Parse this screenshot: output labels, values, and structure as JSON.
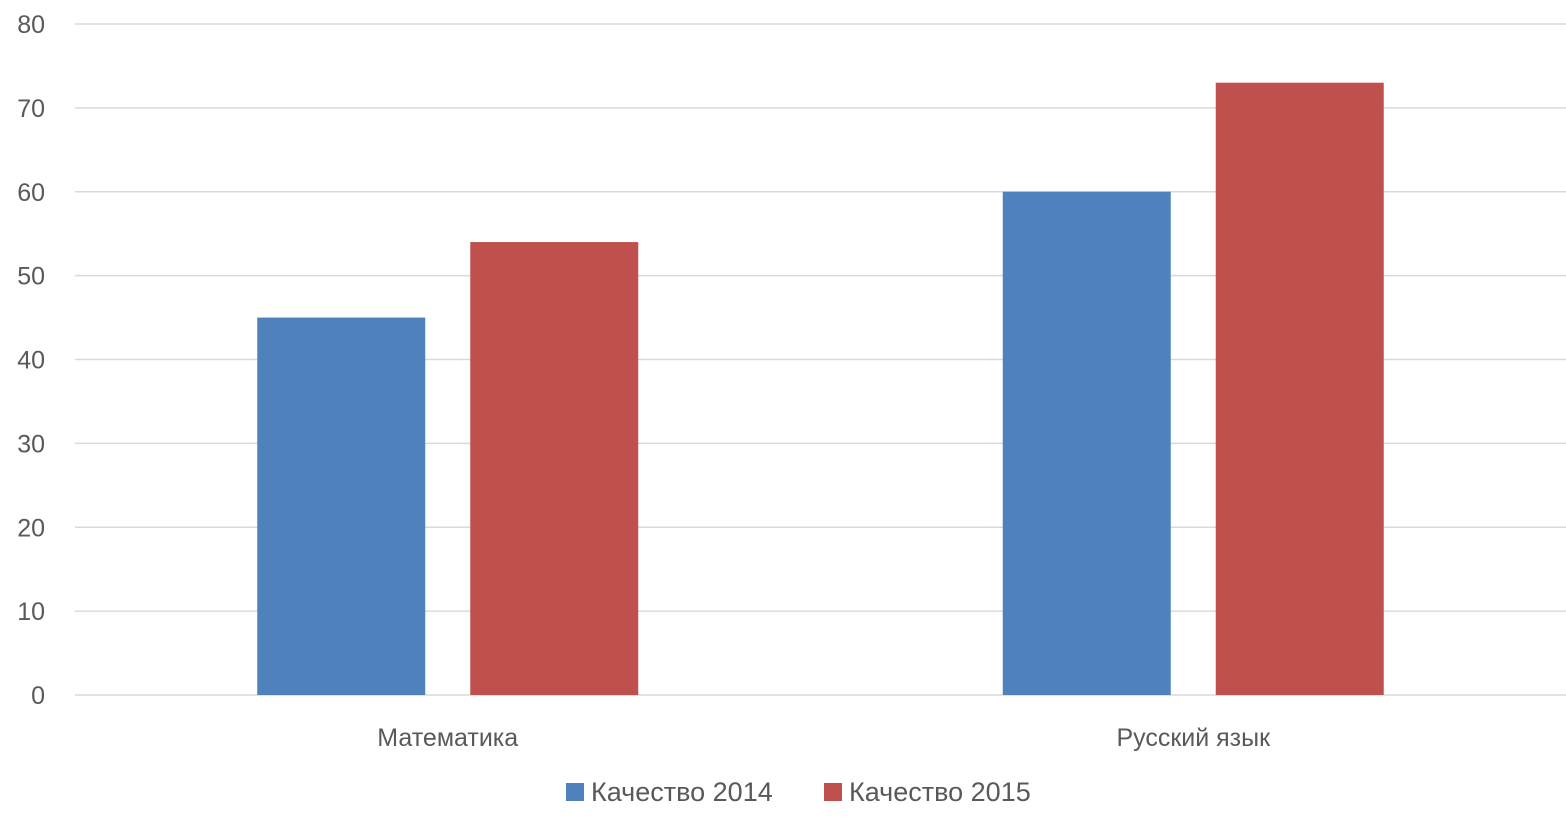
{
  "chart_data": {
    "type": "bar",
    "categories": [
      "Математика",
      "Русский язык"
    ],
    "series": [
      {
        "name": "Качество 2014",
        "values": [
          45,
          60
        ],
        "color": "#4f81bd"
      },
      {
        "name": "Качество 2015",
        "values": [
          54,
          73
        ],
        "color": "#c0504d"
      }
    ],
    "ylim": [
      0,
      80
    ],
    "yticks": [
      0,
      10,
      20,
      30,
      40,
      50,
      60,
      70,
      80
    ],
    "grid": true,
    "legend_position": "bottom",
    "gridline_color": "#d9d9d9",
    "text_color": "#595959"
  }
}
